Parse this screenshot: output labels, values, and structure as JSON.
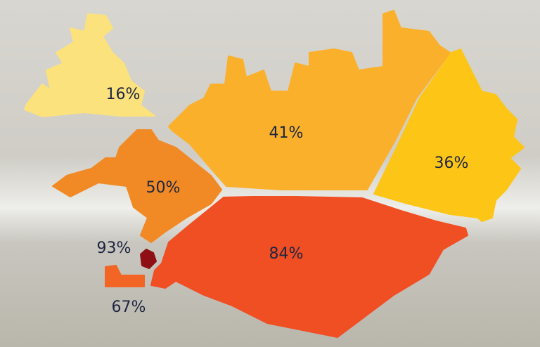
{
  "regions": [
    {
      "label": "16%",
      "color": "#fbe27c"
    },
    {
      "label": "50%",
      "color": "#f18a25"
    },
    {
      "label": "41%",
      "color": "#fbb02b"
    },
    {
      "label": "36%",
      "color": "#fdc516"
    },
    {
      "label": "84%",
      "color": "#f04e23"
    },
    {
      "label": "93%",
      "color": "#8e1014"
    },
    {
      "label": "67%",
      "color": "#f26524"
    }
  ]
}
